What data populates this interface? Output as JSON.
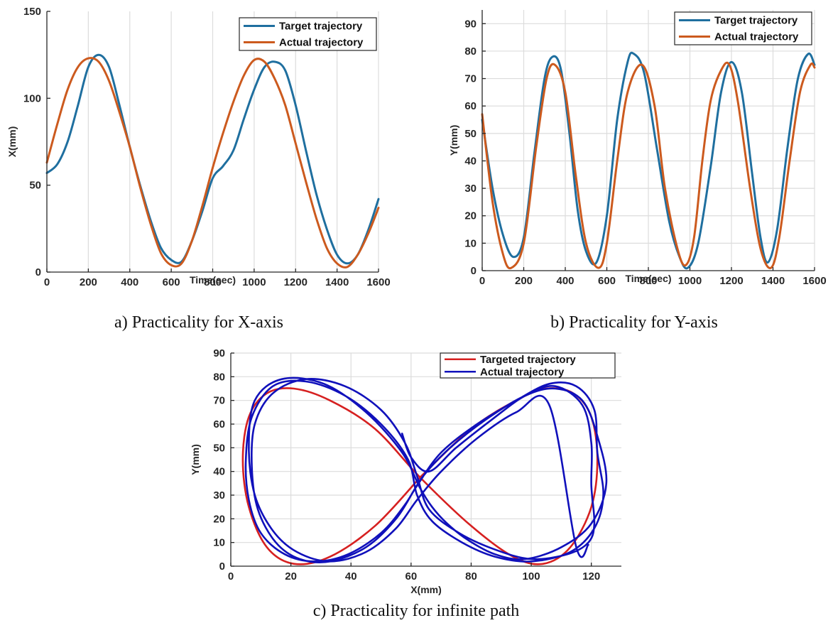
{
  "colors": {
    "target_blue": "#1f6f9f",
    "actual_orange": "#cc5a1e",
    "target_red": "#d62020",
    "actual_blue": "#1010bb"
  },
  "chart_data": [
    {
      "type": "line",
      "caption": "a) Practicality for X-axis",
      "xlabel": "Time(sec)",
      "ylabel": "X(mm)",
      "xlim": [
        0,
        1600
      ],
      "ylim": [
        0,
        150
      ],
      "xticks": [
        0,
        200,
        400,
        600,
        800,
        1000,
        1200,
        1400,
        1600
      ],
      "yticks": [
        0,
        50,
        100,
        150
      ],
      "grid": "vertical",
      "legend_position": "top-right",
      "series": [
        {
          "name": "Target trajectory",
          "x": [
            0,
            50,
            100,
            150,
            200,
            250,
            300,
            350,
            400,
            450,
            500,
            550,
            600,
            650,
            700,
            750,
            800,
            850,
            900,
            950,
            1000,
            1050,
            1100,
            1150,
            1200,
            1250,
            1300,
            1350,
            1400,
            1450,
            1500,
            1550,
            1600
          ],
          "y": [
            57,
            62,
            75,
            96,
            118,
            125,
            118,
            96,
            72,
            50,
            30,
            14,
            7,
            6,
            18,
            35,
            54,
            61,
            70,
            88,
            105,
            118,
            121,
            116,
            96,
            70,
            45,
            25,
            10,
            5,
            10,
            24,
            42
          ]
        },
        {
          "name": "Actual trajectory",
          "x": [
            0,
            50,
            100,
            150,
            200,
            250,
            300,
            350,
            400,
            450,
            500,
            550,
            600,
            650,
            700,
            750,
            800,
            850,
            900,
            950,
            1000,
            1050,
            1100,
            1150,
            1200,
            1250,
            1300,
            1350,
            1400,
            1450,
            1500,
            1550,
            1600
          ],
          "y": [
            63,
            85,
            105,
            118,
            123,
            121,
            110,
            92,
            72,
            49,
            28,
            11,
            4,
            5,
            18,
            38,
            60,
            80,
            98,
            113,
            122,
            121,
            111,
            96,
            74,
            52,
            31,
            14,
            5,
            3,
            10,
            22,
            37
          ]
        }
      ]
    },
    {
      "type": "line",
      "caption": "b) Practicality for Y-axis",
      "xlabel": "Time(sec)",
      "ylabel": "Y(mm)",
      "xlim": [
        0,
        1600
      ],
      "ylim": [
        0,
        95
      ],
      "xticks": [
        0,
        200,
        400,
        600,
        800,
        1000,
        1200,
        1400,
        1600
      ],
      "yticks": [
        0,
        10,
        20,
        30,
        40,
        50,
        60,
        70,
        80,
        90
      ],
      "grid": "both",
      "legend_position": "top-right",
      "series": [
        {
          "name": "Target trajectory",
          "x": [
            0,
            50,
            100,
            150,
            200,
            250,
            300,
            340,
            380,
            420,
            460,
            500,
            550,
            600,
            650,
            700,
            730,
            780,
            840,
            900,
            950,
            990,
            1040,
            1100,
            1150,
            1200,
            1250,
            1300,
            1340,
            1375,
            1420,
            1470,
            1520,
            1570,
            1600
          ],
          "y": [
            55,
            30,
            13,
            5,
            12,
            42,
            70,
            78,
            73,
            50,
            22,
            7,
            3,
            20,
            55,
            76,
            79,
            72,
            45,
            18,
            5,
            1,
            10,
            38,
            65,
            76,
            65,
            35,
            12,
            3,
            15,
            45,
            70,
            79,
            75
          ]
        },
        {
          "name": "Actual trajectory",
          "x": [
            0,
            50,
            100,
            140,
            200,
            260,
            310,
            350,
            400,
            450,
            500,
            560,
            600,
            650,
            700,
            770,
            830,
            880,
            940,
            980,
            1020,
            1060,
            1100,
            1150,
            1190,
            1230,
            1290,
            1340,
            1390,
            1430,
            1480,
            1530,
            1580,
            1600
          ],
          "y": [
            57,
            25,
            6,
            1,
            10,
            45,
            70,
            75,
            65,
            35,
            10,
            1,
            10,
            40,
            65,
            75,
            60,
            30,
            8,
            2,
            12,
            40,
            62,
            73,
            75,
            62,
            30,
            8,
            1,
            12,
            40,
            65,
            75,
            74
          ]
        }
      ]
    },
    {
      "type": "line",
      "caption": "c) Practicality for infinite path",
      "xlabel": "X(mm)",
      "ylabel": "Y(mm)",
      "xlim": [
        0,
        130
      ],
      "ylim": [
        0,
        90
      ],
      "xticks": [
        0,
        20,
        40,
        60,
        80,
        100,
        120
      ],
      "yticks": [
        0,
        10,
        20,
        30,
        40,
        50,
        60,
        70,
        80,
        90
      ],
      "grid": "both",
      "legend_position": "top-right",
      "series": [
        {
          "name": "Targeted trajectory",
          "x": [
            63,
            80,
            95,
            105,
            114,
            120,
            122,
            120,
            113,
            104,
            94,
            80,
            63,
            48,
            33,
            21,
            12,
            6,
            4,
            6,
            12,
            21,
            33,
            48,
            63
          ],
          "y": [
            37.5,
            58,
            70,
            75,
            73,
            63,
            45,
            25,
            8,
            1,
            4,
            17,
            37.5,
            58,
            70,
            75,
            73,
            63,
            45,
            25,
            8,
            1,
            4,
            17,
            37.5
          ]
        },
        {
          "name": "Actual trajectory",
          "x": [
            57,
            60,
            66,
            75,
            87,
            98,
            108,
            117,
            120,
            120,
            121,
            119,
            112,
            100,
            88,
            76,
            66,
            62,
            58,
            50,
            38,
            25,
            14,
            8,
            7,
            9,
            15,
            23,
            33,
            45,
            55,
            62,
            70,
            82,
            95,
            106,
            115,
            121,
            122,
            124,
            121,
            113,
            100,
            88,
            77,
            67,
            62,
            59,
            50,
            38,
            25,
            14,
            7,
            5,
            6,
            10,
            18,
            28,
            39,
            50,
            58,
            64,
            73,
            85,
            98,
            108,
            117,
            122,
            125,
            120,
            110,
            98,
            88,
            79,
            72,
            67,
            63,
            57,
            45,
            31,
            17,
            8,
            6,
            8,
            14,
            22,
            33,
            45,
            55,
            62,
            70,
            82,
            95,
            106,
            115,
            119
          ],
          "y": [
            56,
            46,
            40,
            50,
            62,
            72,
            76,
            68,
            52,
            34,
            18,
            10,
            5,
            3,
            7,
            14,
            24,
            38,
            52,
            66,
            76,
            79,
            73,
            60,
            42,
            24,
            10,
            3,
            2,
            8,
            20,
            34,
            48,
            60,
            70,
            77,
            76,
            66,
            48,
            30,
            16,
            6,
            2,
            4,
            10,
            19,
            30,
            45,
            60,
            72,
            78,
            76,
            63,
            45,
            28,
            14,
            5,
            2,
            5,
            14,
            26,
            38,
            50,
            62,
            72,
            75,
            70,
            55,
            35,
            18,
            8,
            3,
            5,
            11,
            18,
            25,
            33,
            48,
            65,
            77,
            79,
            70,
            50,
            30,
            15,
            6,
            2,
            6,
            16,
            28,
            40,
            54,
            65,
            68,
            8,
            9
          ]
        }
      ]
    }
  ]
}
